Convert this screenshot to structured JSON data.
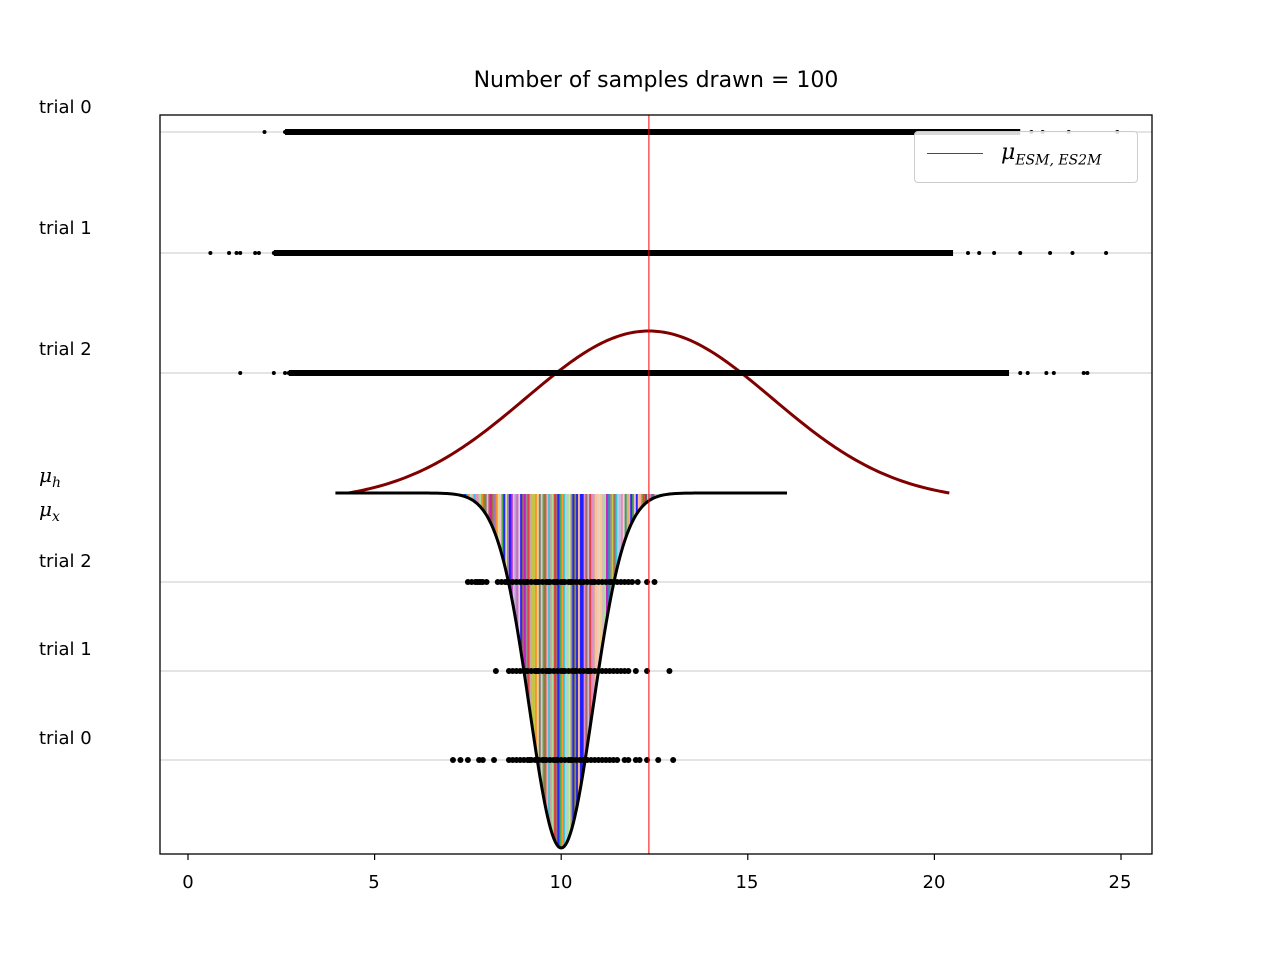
{
  "title": "Number of samples drawn = 100",
  "x_ticks": [
    "0",
    "5",
    "10",
    "15",
    "20",
    "25"
  ],
  "y_labels": {
    "top_trials": [
      "trial 0",
      "trial 1",
      "trial 2"
    ],
    "mu_h": "μ",
    "mu_h_sub": "h",
    "mu_x": "μ",
    "mu_x_sub": "x",
    "bottom_trials": [
      "trial 2",
      "trial 1",
      "trial 0"
    ]
  },
  "legend": {
    "symbol": "μ",
    "sub": "ESM, ES2M",
    "color": "#ff0000"
  },
  "colors": {
    "mean_line": "#ff0000",
    "wide_curve": "#800000",
    "narrow_curve": "#000000",
    "points": "#000000"
  },
  "chart_data": {
    "type": "scatter",
    "title": "Number of samples drawn = 100",
    "xlim": [
      -0.75,
      25.85
    ],
    "x_ticks": [
      0,
      5,
      10,
      15,
      20,
      25
    ],
    "grid": "horizontal lines at each trial row",
    "legend_position": "top-right",
    "mean_line_x": 12.35,
    "mu_h_curve": {
      "mean": 12.35,
      "sd": 3.3,
      "x_range": [
        4.3,
        20.4
      ],
      "color": "#800000"
    },
    "mu_x_curve": {
      "mean": 10.0,
      "sd": 0.85,
      "x_range": [
        3.95,
        16.05
      ],
      "color": "#000000",
      "inverted": true
    },
    "series": [
      {
        "name": "trial 0",
        "group": "top",
        "range": [
          2.0,
          24.9
        ],
        "dense_range": [
          2.6,
          22.3
        ],
        "outliers": [
          2.05,
          2.6,
          2.75,
          3.2,
          21.3,
          21.6,
          22.1,
          22.6,
          22.9,
          23.6,
          24.9
        ]
      },
      {
        "name": "trial 1",
        "group": "top",
        "range": [
          0.6,
          24.6
        ],
        "dense_range": [
          2.3,
          20.5
        ],
        "outliers": [
          0.6,
          1.1,
          1.3,
          1.4,
          1.8,
          1.9,
          2.3,
          20.9,
          21.2,
          21.6,
          22.3,
          23.1,
          23.7,
          24.6
        ]
      },
      {
        "name": "trial 2",
        "group": "top",
        "range": [
          1.4,
          24.1
        ],
        "dense_range": [
          2.7,
          22.0
        ],
        "outliers": [
          1.4,
          2.3,
          2.6,
          2.7,
          22.3,
          22.5,
          23.0,
          23.2,
          24.0,
          24.1
        ]
      },
      {
        "name": "trial 2",
        "group": "bottom",
        "values": [
          7.5,
          7.6,
          7.7,
          7.75,
          7.8,
          7.85,
          7.9,
          8.0,
          8.3,
          8.4,
          8.5,
          8.55,
          8.6,
          8.7,
          8.8,
          8.9,
          9.0,
          9.05,
          9.1,
          9.2,
          9.3,
          9.35,
          9.4,
          9.5,
          9.6,
          9.65,
          9.7,
          9.8,
          9.85,
          9.9,
          10.0,
          10.05,
          10.1,
          10.2,
          10.25,
          10.3,
          10.4,
          10.5,
          10.55,
          10.6,
          10.7,
          10.8,
          10.85,
          10.9,
          11.0,
          11.1,
          11.2,
          11.3,
          11.35,
          11.4,
          11.5,
          11.6,
          11.7,
          11.8,
          11.9,
          12.05,
          12.3,
          12.5
        ]
      },
      {
        "name": "trial 1",
        "group": "bottom",
        "values": [
          8.25,
          8.6,
          8.7,
          8.8,
          8.9,
          9.0,
          9.05,
          9.1,
          9.2,
          9.3,
          9.35,
          9.4,
          9.5,
          9.6,
          9.65,
          9.7,
          9.8,
          9.9,
          10.0,
          10.05,
          10.1,
          10.2,
          10.3,
          10.35,
          10.4,
          10.5,
          10.6,
          10.7,
          10.75,
          10.8,
          10.9,
          11.0,
          11.1,
          11.2,
          11.3,
          11.4,
          11.5,
          11.6,
          11.7,
          11.8,
          12.0,
          12.3,
          12.9
        ]
      },
      {
        "name": "trial 0",
        "group": "bottom",
        "values": [
          7.1,
          7.3,
          7.5,
          7.8,
          7.9,
          8.2,
          8.6,
          8.7,
          8.8,
          8.9,
          9.0,
          9.1,
          9.15,
          9.2,
          9.3,
          9.4,
          9.5,
          9.55,
          9.6,
          9.7,
          9.8,
          9.85,
          9.9,
          10.0,
          10.1,
          10.2,
          10.25,
          10.3,
          10.4,
          10.5,
          10.6,
          10.7,
          10.8,
          10.9,
          11.0,
          11.1,
          11.2,
          11.3,
          11.4,
          11.5,
          11.7,
          11.8,
          12.0,
          12.1,
          12.3,
          12.6,
          13.0
        ]
      }
    ]
  }
}
